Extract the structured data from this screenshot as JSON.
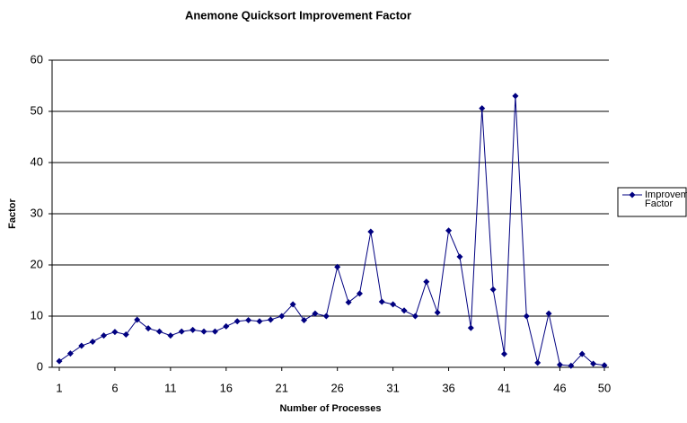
{
  "chart_data": {
    "type": "line",
    "title": "Anemone Quicksort Improvement Factor",
    "x_label": "Number of Processes",
    "y_label": "Factor",
    "x": [
      1,
      2,
      3,
      4,
      5,
      6,
      7,
      8,
      9,
      10,
      11,
      12,
      13,
      14,
      15,
      16,
      17,
      18,
      19,
      20,
      21,
      22,
      23,
      24,
      25,
      26,
      27,
      28,
      29,
      30,
      31,
      32,
      33,
      34,
      35,
      36,
      37,
      38,
      39,
      40,
      41,
      42,
      43,
      44,
      45,
      46,
      47,
      48,
      49,
      50
    ],
    "series": [
      {
        "name": "Improvement Factor",
        "color": "#000080",
        "values": [
          1.2,
          2.7,
          4.2,
          5,
          6.2,
          6.9,
          6.4,
          9.3,
          7.6,
          7.0,
          6.2,
          7.0,
          7.3,
          7.0,
          7.0,
          8.0,
          9.0,
          9.2,
          9.0,
          9.3,
          10.0,
          12.3,
          9.2,
          10.5,
          10.0,
          19.6,
          12.7,
          14.4,
          26.5,
          12.8,
          12.3,
          11.1,
          10.0,
          16.7,
          10.7,
          26.7,
          21.6,
          7.7,
          50.6,
          15.2,
          2.6,
          53,
          10,
          0.9,
          10.5,
          0.5,
          0.3,
          2.6,
          0.7,
          0.4
        ]
      }
    ],
    "xlim": [
      1,
      50
    ],
    "xticks": [
      1,
      6,
      11,
      16,
      21,
      26,
      31,
      36,
      41,
      46,
      50
    ],
    "ylim": [
      0,
      60
    ],
    "yticks": [
      0,
      10,
      20,
      30,
      40,
      50,
      60
    ],
    "grid": true,
    "legend": "right"
  }
}
